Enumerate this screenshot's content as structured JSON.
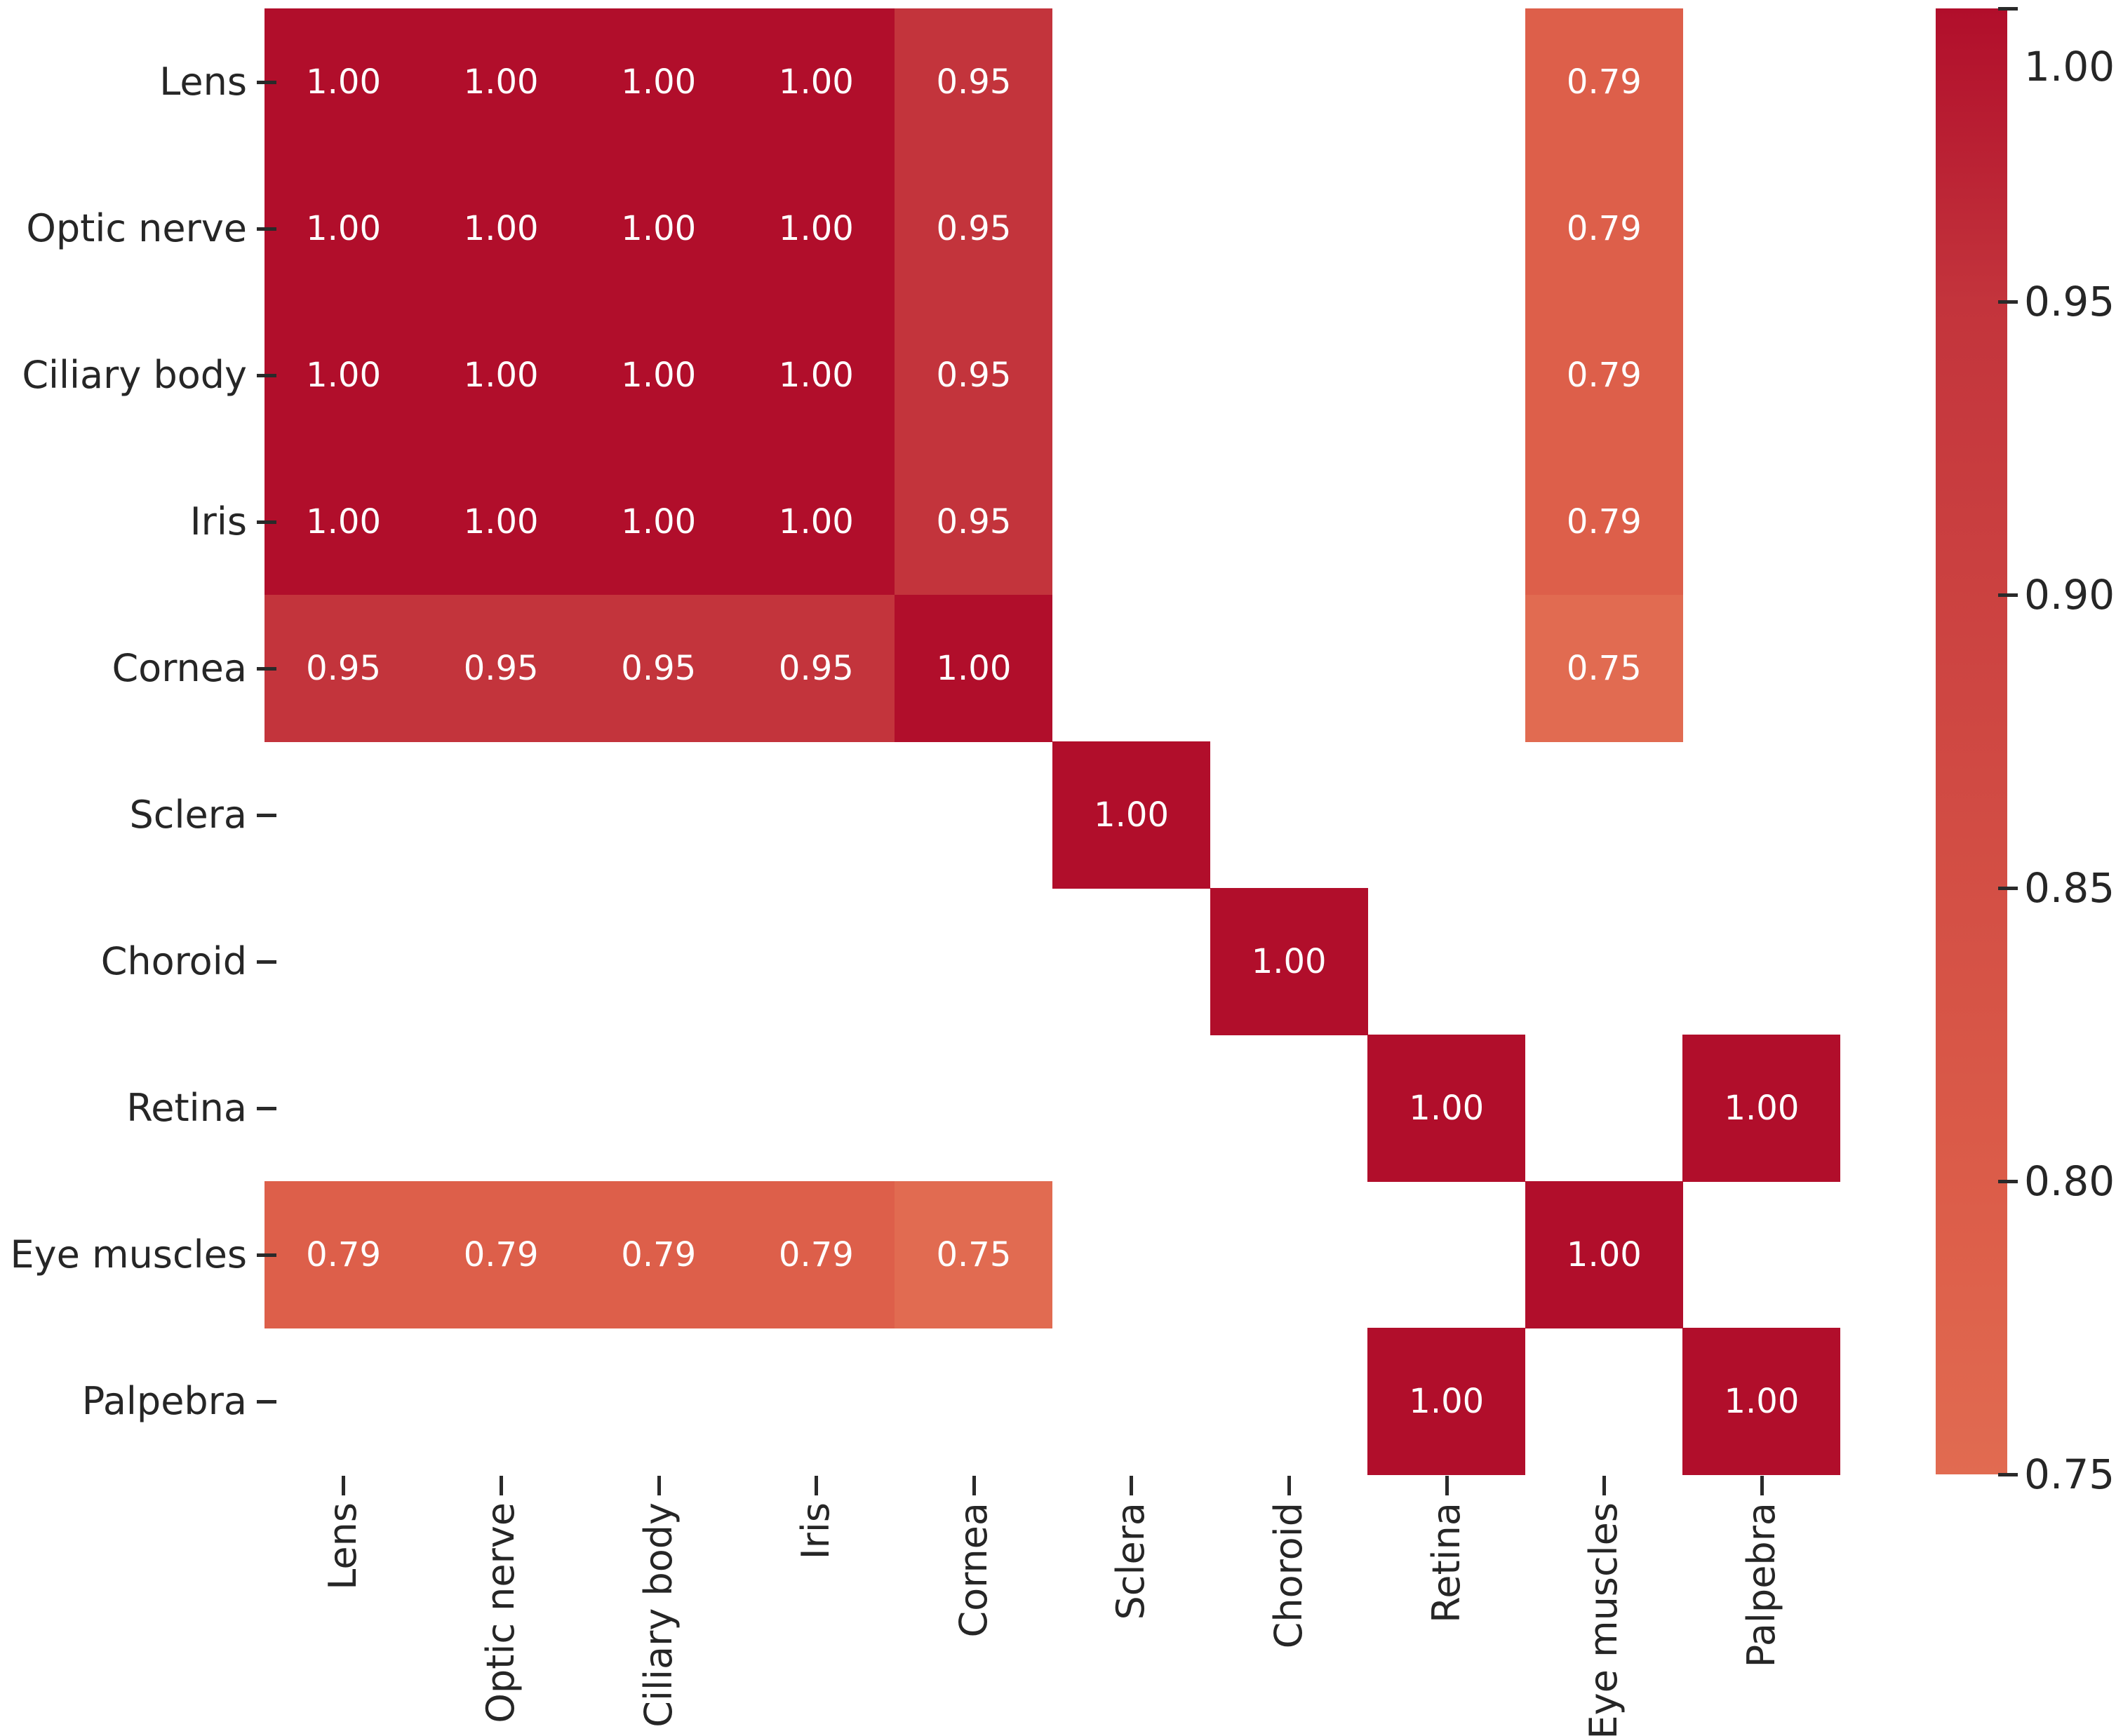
{
  "chart_data": {
    "type": "heatmap",
    "title": "",
    "xlabel": "",
    "ylabel": "",
    "grid": false,
    "x_tick_rotation_deg": 90,
    "categories": [
      "Lens",
      "Optic nerve",
      "Ciliary body",
      "Iris",
      "Cornea",
      "Sclera",
      "Choroid",
      "Retina",
      "Eye muscles",
      "Palpebra"
    ],
    "matrix": [
      [
        1.0,
        1.0,
        1.0,
        1.0,
        0.95,
        null,
        null,
        null,
        0.79,
        null
      ],
      [
        1.0,
        1.0,
        1.0,
        1.0,
        0.95,
        null,
        null,
        null,
        0.79,
        null
      ],
      [
        1.0,
        1.0,
        1.0,
        1.0,
        0.95,
        null,
        null,
        null,
        0.79,
        null
      ],
      [
        1.0,
        1.0,
        1.0,
        1.0,
        0.95,
        null,
        null,
        null,
        0.79,
        null
      ],
      [
        0.95,
        0.95,
        0.95,
        0.95,
        1.0,
        null,
        null,
        null,
        0.75,
        null
      ],
      [
        null,
        null,
        null,
        null,
        null,
        1.0,
        null,
        null,
        null,
        null
      ],
      [
        null,
        null,
        null,
        null,
        null,
        null,
        1.0,
        null,
        null,
        null
      ],
      [
        null,
        null,
        null,
        null,
        null,
        null,
        null,
        1.0,
        null,
        1.0
      ],
      [
        0.79,
        0.79,
        0.79,
        0.79,
        0.75,
        null,
        null,
        null,
        1.0,
        null
      ],
      [
        null,
        null,
        null,
        null,
        null,
        null,
        null,
        1.0,
        null,
        1.0
      ]
    ],
    "colorbar": {
      "position": "right",
      "vmin": 0.75,
      "vmax": 1.0,
      "tick_labels": [
        "1.00",
        "0.95",
        "0.90",
        "0.85",
        "0.80",
        "0.75"
      ]
    },
    "color_scale": {
      "stops": [
        {
          "value": 1.0,
          "color": "#b10e2b"
        },
        {
          "value": 0.95,
          "color": "#c3343c"
        },
        {
          "value": 0.79,
          "color": "#dd5f4a"
        },
        {
          "value": 0.75,
          "color": "#e16b51"
        }
      ]
    },
    "styles": {
      "background": "#ffffff",
      "cell_text_color": "#ffffff",
      "axis_text_color": "#262626",
      "tick_mark_color": "#2a2a2a"
    }
  }
}
